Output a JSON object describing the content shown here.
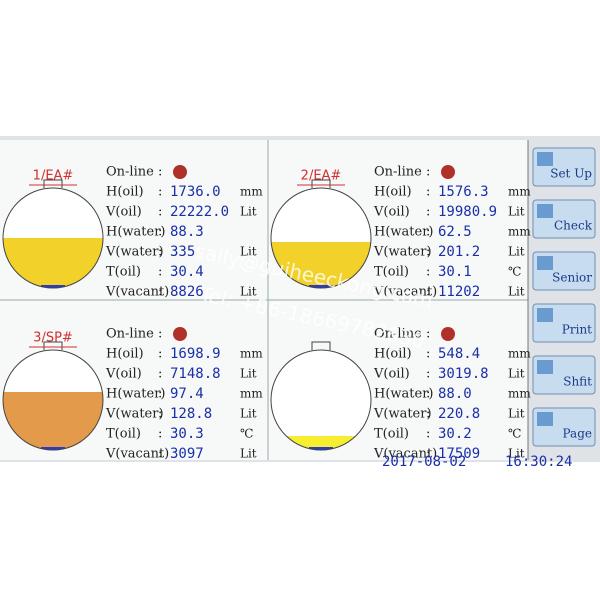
{
  "online_label": "On-line",
  "row_labels": [
    "H(oil)",
    "V(oil)",
    "H(water)",
    "V(water)",
    "T(oil)",
    "V(vacant)"
  ],
  "tanks": [
    {
      "name": "1/EA#",
      "values": [
        "1736.0",
        "22222.0",
        "88.3",
        "335",
        "30.4",
        "8826"
      ],
      "units": [
        "mm",
        "Lit",
        null,
        "Lit",
        null,
        "Lit"
      ]
    },
    {
      "name": "2/EA#",
      "values": [
        "1576.3",
        "19980.9",
        "62.5",
        "201.2",
        "30.1",
        "11202"
      ],
      "units": [
        "mm",
        "Lit",
        "mm",
        "Lit",
        "℃",
        "Lit"
      ]
    },
    {
      "name": "3/SP#",
      "values": [
        "1698.9",
        "7148.8",
        "97.4",
        "128.8",
        "30.3",
        "3097"
      ],
      "units": [
        "mm",
        "Lit",
        "mm",
        "Lit",
        "℃",
        "Lit"
      ]
    },
    {
      "name": null,
      "values": [
        "548.4",
        "3019.8",
        "88.0",
        "220.8",
        "30.2",
        "17509"
      ],
      "units": [
        "mm",
        "Lit",
        "mm",
        "Lit",
        "℃",
        "Lit"
      ]
    }
  ],
  "buttons": [
    "Set Up",
    "Check",
    "Senior",
    "Print",
    "Shfit",
    "Page"
  ],
  "footer": {
    "date": "2017-08-02",
    "time": "16:30:24"
  },
  "watermark": {
    "email": "sally@guiheeckong.com",
    "tel": "Tel: +86-18669782630"
  }
}
